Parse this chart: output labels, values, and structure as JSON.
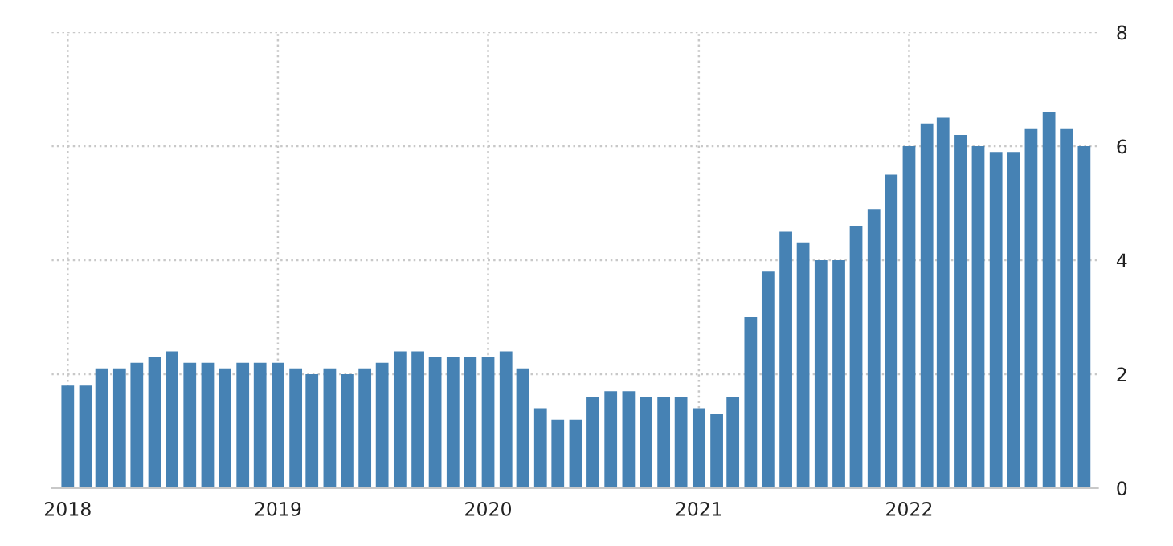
{
  "chart_data": {
    "type": "bar",
    "x": [
      "2018-01",
      "2018-02",
      "2018-03",
      "2018-04",
      "2018-05",
      "2018-06",
      "2018-07",
      "2018-08",
      "2018-09",
      "2018-10",
      "2018-11",
      "2018-12",
      "2019-01",
      "2019-02",
      "2019-03",
      "2019-04",
      "2019-05",
      "2019-06",
      "2019-07",
      "2019-08",
      "2019-09",
      "2019-10",
      "2019-11",
      "2019-12",
      "2020-01",
      "2020-02",
      "2020-03",
      "2020-04",
      "2020-05",
      "2020-06",
      "2020-07",
      "2020-08",
      "2020-09",
      "2020-10",
      "2020-11",
      "2020-12",
      "2021-01",
      "2021-02",
      "2021-03",
      "2021-04",
      "2021-05",
      "2021-06",
      "2021-07",
      "2021-08",
      "2021-09",
      "2021-10",
      "2021-11",
      "2021-12",
      "2022-01",
      "2022-02",
      "2022-03",
      "2022-04",
      "2022-05",
      "2022-06",
      "2022-07",
      "2022-08",
      "2022-09",
      "2022-10",
      "2022-11"
    ],
    "values": [
      1.8,
      1.8,
      2.1,
      2.1,
      2.2,
      2.3,
      2.4,
      2.2,
      2.2,
      2.1,
      2.2,
      2.2,
      2.2,
      2.1,
      2.0,
      2.1,
      2.0,
      2.1,
      2.2,
      2.4,
      2.4,
      2.3,
      2.3,
      2.3,
      2.3,
      2.4,
      2.1,
      1.4,
      1.2,
      1.2,
      1.6,
      1.7,
      1.7,
      1.6,
      1.6,
      1.6,
      1.4,
      1.3,
      1.6,
      3.0,
      3.8,
      4.5,
      4.3,
      4.0,
      4.0,
      4.6,
      4.9,
      5.5,
      6.0,
      6.4,
      6.5,
      6.2,
      6.0,
      5.9,
      5.9,
      6.3,
      6.6,
      6.3,
      6.0
    ],
    "color": "#4682b4",
    "xlim": [
      "2017-12-04",
      "2022-11-25"
    ],
    "xticks": [
      {
        "value": "2018-01-01",
        "label": "2018"
      },
      {
        "value": "2019-01-01",
        "label": "2019"
      },
      {
        "value": "2020-01-01",
        "label": "2020"
      },
      {
        "value": "2021-01-01",
        "label": "2021"
      },
      {
        "value": "2022-01-01",
        "label": "2022"
      }
    ],
    "ylim": [
      0,
      8
    ],
    "yticks": [
      0,
      2,
      4,
      6,
      8
    ],
    "grid": true
  }
}
